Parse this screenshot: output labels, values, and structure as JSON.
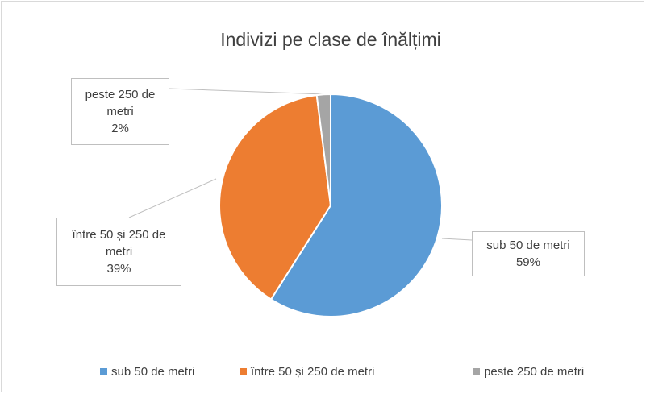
{
  "chart_data": {
    "type": "pie",
    "title": "Indivizi pe clase de înălțimi",
    "categories": [
      "sub 50 de metri",
      "între 50 și 250 de metri",
      "peste 250 de metri"
    ],
    "values": [
      59,
      39,
      2
    ],
    "value_labels": [
      "59%",
      "39%",
      "2%"
    ],
    "colors": [
      "#5b9bd5",
      "#ed7d31",
      "#a5a5a5"
    ],
    "legend": "bottom"
  }
}
